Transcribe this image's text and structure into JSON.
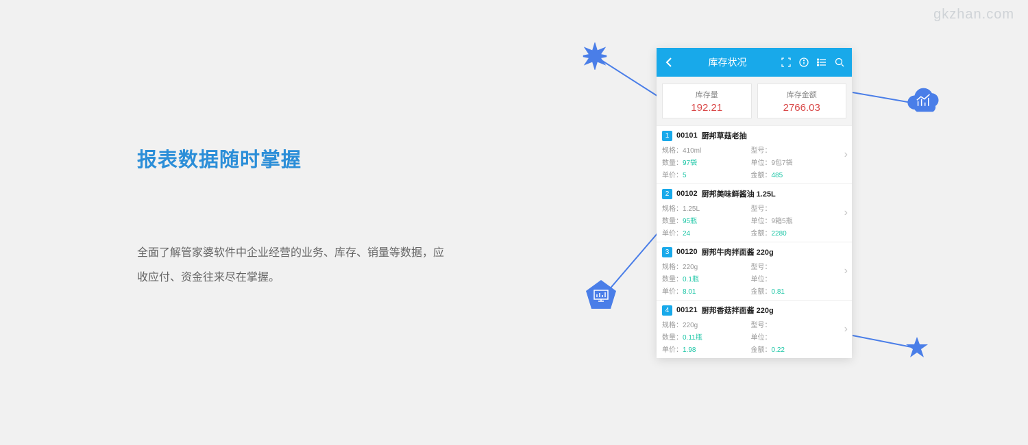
{
  "watermark": "gkzhan.com",
  "marketing": {
    "headline": "报表数据随时掌握",
    "body": "全面了解管家婆软件中企业经营的业务、库存、销量等数据，应收应付、资金往来尽在掌握。"
  },
  "colors": {
    "accent_blue": "#18a9ea",
    "deco_blue": "#4a7ee8",
    "value_red": "#d94848",
    "hl_teal": "#1cc6a6",
    "page_bg": "#f1f1f1",
    "text_gray": "#666",
    "label_gray": "#999"
  },
  "phone": {
    "header": {
      "title": "库存状况",
      "icons": [
        "scan-icon",
        "info-icon",
        "list-icon",
        "search-icon"
      ]
    },
    "summary": [
      {
        "label": "库存量",
        "value": "192.21"
      },
      {
        "label": "库存金额",
        "value": "2766.03"
      }
    ],
    "field_labels": {
      "spec": "规格：",
      "model": "型号：",
      "qty": "数量：",
      "unit": "单位：",
      "price": "单价：",
      "amount": "金额："
    },
    "items": [
      {
        "idx": "1",
        "code": "00101",
        "name": "厨邦草菇老抽",
        "spec": "410ml",
        "model": "",
        "qty": "97袋",
        "unit": "9包7袋",
        "price": "5",
        "amount": "485"
      },
      {
        "idx": "2",
        "code": "00102",
        "name": "厨邦美味鲜酱油 1.25L",
        "spec": "1.25L",
        "model": "",
        "qty": "95瓶",
        "unit": "9箱5瓶",
        "price": "24",
        "amount": "2280"
      },
      {
        "idx": "3",
        "code": "00120",
        "name": "厨邦牛肉拌面酱 220g",
        "spec": "220g",
        "model": "",
        "qty": "0.1瓶",
        "unit": "",
        "price": "8.01",
        "amount": "0.81"
      },
      {
        "idx": "4",
        "code": "00121",
        "name": "厨邦香菇拌面酱 220g",
        "spec": "220g",
        "model": "",
        "qty": "0.11瓶",
        "unit": "",
        "price": "1.98",
        "amount": "0.22"
      }
    ]
  }
}
